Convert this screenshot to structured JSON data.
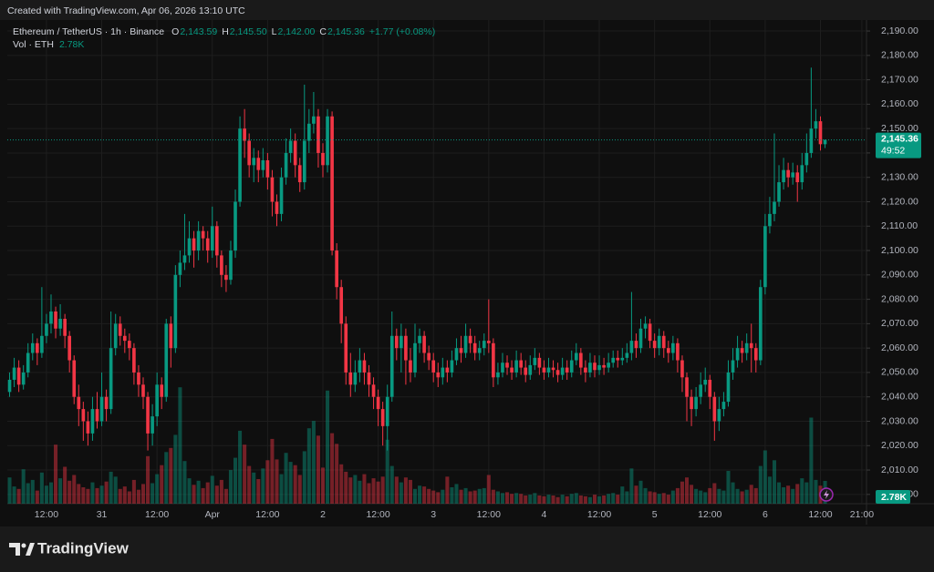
{
  "watermark": "Created with TradingView.com, Apr 06, 2026 13:10 UTC",
  "logo": "TradingView",
  "chart_data": {
    "type": "candlestick",
    "title": "Ethereum / TetherUS · 1h · Binance",
    "ohlc_legend": [
      {
        "label": "O",
        "value": "2,143.59"
      },
      {
        "label": "H",
        "value": "2,145.50"
      },
      {
        "label": "L",
        "value": "2,142.00"
      },
      {
        "label": "C",
        "value": "2,145.36"
      }
    ],
    "change": "+1.77 (+0.08%)",
    "volume_legend": {
      "label": "Vol · ETH",
      "value": "2.78K"
    },
    "countdown": "49:52",
    "up_color": "#089981",
    "down_color": "#f23645",
    "grid": true,
    "xlim": [
      -0.5,
      186
    ],
    "xticks": [
      {
        "value": 8,
        "label": "12:00"
      },
      {
        "value": 20,
        "label": "31"
      },
      {
        "value": 32,
        "label": "12:00"
      },
      {
        "value": 44,
        "label": "Apr"
      },
      {
        "value": 56,
        "label": "12:00"
      },
      {
        "value": 68,
        "label": "2"
      },
      {
        "value": 80,
        "label": "12:00"
      },
      {
        "value": 92,
        "label": "3"
      },
      {
        "value": 104,
        "label": "12:00"
      },
      {
        "value": 116,
        "label": "4"
      },
      {
        "value": 128,
        "label": "12:00"
      },
      {
        "value": 140,
        "label": "5"
      },
      {
        "value": 152,
        "label": "12:00"
      },
      {
        "value": 164,
        "label": "6"
      },
      {
        "value": 176,
        "label": "12:00"
      },
      {
        "value": 185,
        "label": "21:00"
      }
    ],
    "ylim": [
      1996.2,
      2194.5
    ],
    "yticks": [
      {
        "value": 2000,
        "label": "2,000.00"
      },
      {
        "value": 2010,
        "label": "2,010.00"
      },
      {
        "value": 2020,
        "label": "2,020.00"
      },
      {
        "value": 2030,
        "label": "2,030.00"
      },
      {
        "value": 2040,
        "label": "2,040.00"
      },
      {
        "value": 2050,
        "label": "2,050.00"
      },
      {
        "value": 2060,
        "label": "2,060.00"
      },
      {
        "value": 2070,
        "label": "2,070.00"
      },
      {
        "value": 2080,
        "label": "2,080.00"
      },
      {
        "value": 2090,
        "label": "2,090.00"
      },
      {
        "value": 2100,
        "label": "2,100.00"
      },
      {
        "value": 2110,
        "label": "2,110.00"
      },
      {
        "value": 2120,
        "label": "2,120.00"
      },
      {
        "value": 2130,
        "label": "2,130.00"
      },
      {
        "value": 2140,
        "label": "2,140.00"
      },
      {
        "value": 2150,
        "label": "2,150.00"
      },
      {
        "value": 2160,
        "label": "2,160.00"
      },
      {
        "value": 2170,
        "label": "2,170.00"
      },
      {
        "value": 2180,
        "label": "2,180.00"
      },
      {
        "value": 2190,
        "label": "2,190.00"
      }
    ],
    "volume_lim": [
      0,
      59000
    ],
    "open": [
      2042,
      2047,
      2052,
      2045,
      2050,
      2058,
      2062,
      2058,
      2065,
      2070,
      2075,
      2068,
      2072,
      2065,
      2055,
      2040,
      2035,
      2030,
      2025,
      2035,
      2030,
      2040,
      2035,
      2060,
      2070,
      2065,
      2063,
      2060,
      2050,
      2045,
      2040,
      2025,
      2032,
      2045,
      2040,
      2070,
      2060,
      2090,
      2095,
      2098,
      2105,
      2100,
      2108,
      2105,
      2100,
      2110,
      2098,
      2090,
      2088,
      2100,
      2120,
      2150,
      2145,
      2135,
      2138,
      2133,
      2137,
      2130,
      2120,
      2115,
      2130,
      2140,
      2145,
      2135,
      2128,
      2145,
      2152,
      2155,
      2140,
      2135,
      2155,
      2100,
      2085,
      2070,
      2050,
      2045,
      2050,
      2055,
      2050,
      2045,
      2040,
      2035,
      2028,
      2040,
      2065,
      2060,
      2065,
      2055,
      2050,
      2062,
      2065,
      2058,
      2055,
      2050,
      2048,
      2052,
      2050,
      2055,
      2060,
      2058,
      2065,
      2062,
      2058,
      2060,
      2063,
      2062,
      2048,
      2050,
      2054,
      2052,
      2050,
      2055,
      2052,
      2049,
      2053,
      2056,
      2052,
      2050,
      2052,
      2051,
      2049,
      2052,
      2050,
      2055,
      2058,
      2052,
      2050,
      2054,
      2051,
      2053,
      2052,
      2054,
      2056,
      2055,
      2056,
      2058,
      2063,
      2060,
      2068,
      2070,
      2063,
      2060,
      2065,
      2060,
      2058,
      2062,
      2055,
      2048,
      2040,
      2035,
      2040,
      2045,
      2047,
      2040,
      2030,
      2035,
      2038,
      2050,
      2055,
      2060,
      2058,
      2062,
      2060,
      2055,
      2085,
      2110,
      2115,
      2120,
      2128,
      2133,
      2130,
      2132,
      2128,
      2135,
      2140,
      2150,
      2153,
      2143.59
    ],
    "high": [
      2050,
      2056,
      2055,
      2053,
      2062,
      2066,
      2064,
      2085,
      2074,
      2082,
      2077,
      2078,
      2074,
      2067,
      2057,
      2045,
      2038,
      2034,
      2040,
      2042,
      2050,
      2043,
      2075,
      2074,
      2073,
      2068,
      2066,
      2062,
      2053,
      2048,
      2042,
      2037,
      2050,
      2048,
      2072,
      2073,
      2094,
      2100,
      2115,
      2112,
      2108,
      2112,
      2110,
      2108,
      2118,
      2112,
      2100,
      2094,
      2104,
      2125,
      2155,
      2158,
      2148,
      2142,
      2141,
      2142,
      2140,
      2133,
      2123,
      2134,
      2146,
      2150,
      2148,
      2138,
      2168,
      2158,
      2165,
      2158,
      2144,
      2158,
      2157,
      2103,
      2088,
      2073,
      2058,
      2055,
      2060,
      2058,
      2053,
      2048,
      2043,
      2038,
      2045,
      2075,
      2068,
      2070,
      2068,
      2060,
      2070,
      2068,
      2067,
      2061,
      2058,
      2054,
      2056,
      2055,
      2059,
      2064,
      2065,
      2070,
      2068,
      2065,
      2063,
      2066,
      2080,
      2064,
      2054,
      2058,
      2057,
      2055,
      2059,
      2058,
      2055,
      2057,
      2060,
      2058,
      2055,
      2056,
      2055,
      2054,
      2056,
      2055,
      2059,
      2062,
      2060,
      2055,
      2058,
      2057,
      2057,
      2056,
      2058,
      2059,
      2059,
      2060,
      2062,
      2083,
      2066,
      2072,
      2073,
      2072,
      2066,
      2068,
      2067,
      2063,
      2065,
      2064,
      2057,
      2050,
      2043,
      2044,
      2050,
      2052,
      2049,
      2042,
      2040,
      2042,
      2055,
      2060,
      2065,
      2063,
      2066,
      2070,
      2062,
      2088,
      2115,
      2122,
      2148,
      2135,
      2138,
      2136,
      2136,
      2135,
      2140,
      2148,
      2175,
      2158,
      2155,
      2145.5
    ],
    "low": [
      2040,
      2044,
      2042,
      2043,
      2048,
      2055,
      2053,
      2056,
      2062,
      2066,
      2064,
      2065,
      2060,
      2050,
      2037,
      2028,
      2022,
      2020,
      2022,
      2027,
      2028,
      2030,
      2033,
      2057,
      2061,
      2058,
      2055,
      2045,
      2040,
      2035,
      2018,
      2020,
      2028,
      2035,
      2038,
      2052,
      2058,
      2085,
      2092,
      2095,
      2093,
      2096,
      2100,
      2095,
      2097,
      2093,
      2085,
      2083,
      2086,
      2097,
      2118,
      2138,
      2130,
      2128,
      2128,
      2130,
      2125,
      2114,
      2110,
      2112,
      2127,
      2136,
      2130,
      2124,
      2125,
      2140,
      2148,
      2134,
      2130,
      2132,
      2098,
      2080,
      2062,
      2045,
      2040,
      2042,
      2046,
      2045,
      2040,
      2035,
      2028,
      2020,
      2018,
      2038,
      2055,
      2050,
      2045,
      2046,
      2048,
      2058,
      2054,
      2051,
      2046,
      2044,
      2045,
      2046,
      2048,
      2053,
      2054,
      2056,
      2058,
      2055,
      2055,
      2057,
      2058,
      2044,
      2045,
      2048,
      2049,
      2047,
      2048,
      2049,
      2046,
      2047,
      2051,
      2049,
      2047,
      2048,
      2048,
      2046,
      2047,
      2047,
      2048,
      2053,
      2049,
      2046,
      2048,
      2048,
      2049,
      2049,
      2050,
      2052,
      2052,
      2053,
      2054,
      2055,
      2056,
      2058,
      2064,
      2060,
      2056,
      2057,
      2056,
      2054,
      2055,
      2050,
      2042,
      2030,
      2028,
      2032,
      2037,
      2042,
      2035,
      2022,
      2026,
      2032,
      2036,
      2047,
      2052,
      2054,
      2055,
      2050,
      2050,
      2053,
      2082,
      2107,
      2112,
      2118,
      2125,
      2126,
      2127,
      2120,
      2125,
      2132,
      2138,
      2146,
      2141,
      2142
    ],
    "close": [
      2047,
      2052,
      2045,
      2050,
      2058,
      2062,
      2058,
      2065,
      2070,
      2075,
      2068,
      2072,
      2065,
      2055,
      2040,
      2035,
      2030,
      2025,
      2035,
      2030,
      2040,
      2035,
      2060,
      2070,
      2065,
      2063,
      2060,
      2050,
      2045,
      2040,
      2025,
      2032,
      2045,
      2040,
      2070,
      2060,
      2090,
      2095,
      2098,
      2105,
      2100,
      2108,
      2105,
      2100,
      2110,
      2098,
      2090,
      2088,
      2100,
      2120,
      2150,
      2145,
      2135,
      2138,
      2133,
      2137,
      2130,
      2120,
      2115,
      2130,
      2140,
      2145,
      2135,
      2128,
      2145,
      2152,
      2155,
      2140,
      2135,
      2155,
      2100,
      2085,
      2070,
      2050,
      2045,
      2050,
      2055,
      2050,
      2045,
      2040,
      2035,
      2028,
      2040,
      2065,
      2060,
      2065,
      2055,
      2050,
      2062,
      2065,
      2058,
      2055,
      2050,
      2048,
      2052,
      2050,
      2055,
      2060,
      2058,
      2065,
      2062,
      2058,
      2060,
      2063,
      2062,
      2048,
      2050,
      2054,
      2052,
      2050,
      2055,
      2052,
      2049,
      2053,
      2056,
      2052,
      2050,
      2052,
      2051,
      2049,
      2052,
      2050,
      2055,
      2058,
      2052,
      2050,
      2054,
      2051,
      2053,
      2052,
      2054,
      2056,
      2055,
      2056,
      2058,
      2063,
      2060,
      2068,
      2070,
      2063,
      2060,
      2065,
      2060,
      2058,
      2062,
      2055,
      2048,
      2040,
      2035,
      2040,
      2045,
      2047,
      2040,
      2030,
      2035,
      2038,
      2050,
      2055,
      2060,
      2058,
      2062,
      2060,
      2055,
      2085,
      2110,
      2115,
      2120,
      2128,
      2133,
      2130,
      2132,
      2128,
      2135,
      2140,
      2150,
      2153,
      2143.59,
      2145.36
    ],
    "volume": [
      3200,
      2100,
      1800,
      4200,
      2500,
      2900,
      1600,
      3800,
      2200,
      2600,
      7200,
      3100,
      4500,
      2800,
      3500,
      2400,
      2000,
      1800,
      2600,
      1900,
      2200,
      2700,
      3900,
      3300,
      1800,
      2100,
      1500,
      2900,
      1700,
      2400,
      5800,
      2500,
      3600,
      4700,
      6300,
      6800,
      8400,
      14200,
      5200,
      3100,
      2300,
      2800,
      1900,
      2600,
      3400,
      2200,
      2900,
      1800,
      4100,
      5600,
      8900,
      7200,
      4600,
      3800,
      3000,
      4300,
      5300,
      7900,
      5400,
      3600,
      6200,
      5100,
      4700,
      3500,
      6400,
      9200,
      10100,
      8300,
      4400,
      13800,
      8600,
      7300,
      4800,
      3900,
      3200,
      3500,
      2800,
      3600,
      2500,
      3100,
      2700,
      3300,
      7800,
      4600,
      3300,
      2600,
      3200,
      2900,
      1800,
      2200,
      2100,
      1800,
      1600,
      1400,
      1700,
      3300,
      2000,
      2400,
      1700,
      1900,
      1500,
      1600,
      1800,
      1900,
      3500,
      1700,
      1500,
      1300,
      1400,
      1200,
      1300,
      1200,
      1000,
      1100,
      1300,
      1000,
      900,
      1100,
      1000,
      800,
      1100,
      900,
      1200,
      1300,
      1000,
      900,
      800,
      1100,
      900,
      1000,
      1200,
      1300,
      1100,
      2100,
      1500,
      4300,
      2200,
      2800,
      1900,
      1500,
      1400,
      1200,
      1300,
      1100,
      1600,
      1900,
      2700,
      3200,
      2300,
      1800,
      1600,
      1400,
      1900,
      2500,
      1800,
      1600,
      4000,
      2600,
      1800,
      1500,
      1700,
      2300,
      1900,
      4600,
      6500,
      3300,
      5300,
      2600,
      2000,
      2200,
      1800,
      2400,
      3100,
      2600,
      10500,
      2900,
      2200,
      2780
    ]
  }
}
